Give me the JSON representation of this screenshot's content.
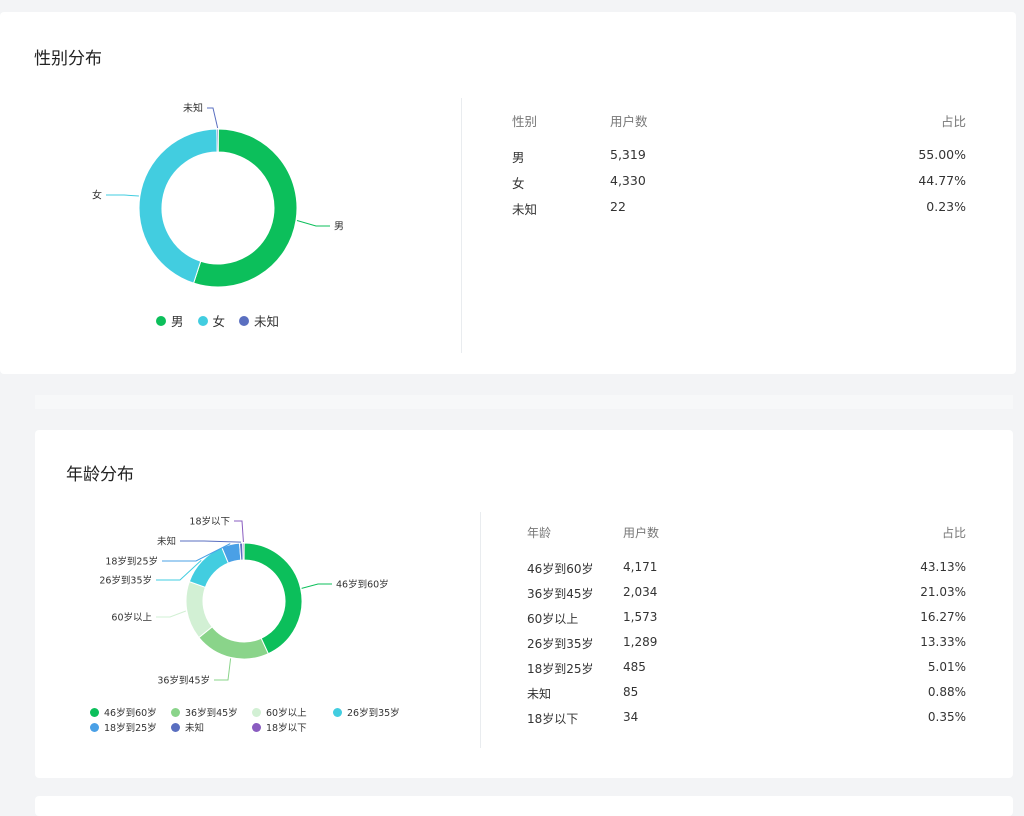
{
  "gender": {
    "title": "性别分布",
    "table": {
      "headers": [
        "性别",
        "用户数",
        "占比"
      ],
      "rows": [
        {
          "label": "男",
          "count": "5,319",
          "pct": "55.00%"
        },
        {
          "label": "女",
          "count": "4,330",
          "pct": "44.77%"
        },
        {
          "label": "未知",
          "count": "22",
          "pct": "0.23%"
        }
      ]
    }
  },
  "age": {
    "title": "年龄分布",
    "table": {
      "headers": [
        "年龄",
        "用户数",
        "占比"
      ],
      "rows": [
        {
          "label": "46岁到60岁",
          "count": "4,171",
          "pct": "43.13%"
        },
        {
          "label": "36岁到45岁",
          "count": "2,034",
          "pct": "21.03%"
        },
        {
          "label": "60岁以上",
          "count": "1,573",
          "pct": "16.27%"
        },
        {
          "label": "26岁到35岁",
          "count": "1,289",
          "pct": "13.33%"
        },
        {
          "label": "18岁到25岁",
          "count": "485",
          "pct": "5.01%"
        },
        {
          "label": "未知",
          "count": "85",
          "pct": "0.88%"
        },
        {
          "label": "18岁以下",
          "count": "34",
          "pct": "0.35%"
        }
      ]
    }
  },
  "chart_data": [
    {
      "type": "pie",
      "title": "性别分布",
      "donut": true,
      "categories": [
        "男",
        "女",
        "未知"
      ],
      "values": [
        5319,
        4330,
        22
      ],
      "percentages": [
        55.0,
        44.77,
        0.23
      ],
      "colors": [
        "#0cbf5b",
        "#42cde0",
        "#5a6fc0"
      ],
      "legend": "bottom"
    },
    {
      "type": "pie",
      "title": "年龄分布",
      "donut": true,
      "categories": [
        "46岁到60岁",
        "36岁到45岁",
        "60岁以上",
        "26岁到35岁",
        "18岁到25岁",
        "未知",
        "18岁以下"
      ],
      "values": [
        4171,
        2034,
        1573,
        1289,
        485,
        85,
        34
      ],
      "percentages": [
        43.13,
        21.03,
        16.27,
        13.33,
        5.01,
        0.88,
        0.35
      ],
      "colors": [
        "#0cbf5b",
        "#8ad48a",
        "#d2f0d4",
        "#42cde0",
        "#4aa0e6",
        "#5a6fc0",
        "#8a5cc0"
      ],
      "legend": "bottom"
    }
  ]
}
